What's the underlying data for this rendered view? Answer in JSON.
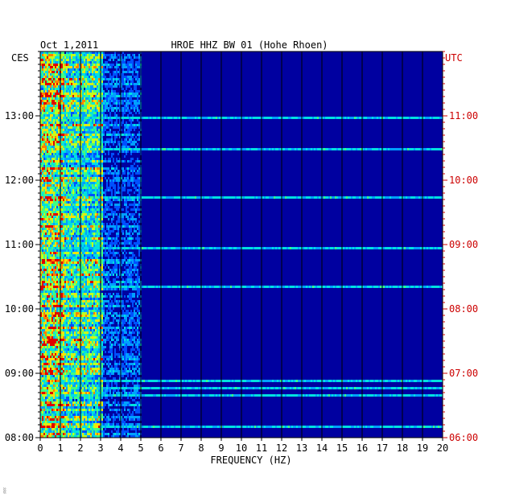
{
  "chart_data": {
    "type": "heatmap",
    "title": "HROE HHZ BW 01 (Hohe Rhoen)",
    "date": "Oct 1,2011",
    "xlabel": "FREQUENCY (HZ)",
    "left_axis_label": "CES",
    "right_axis_label": "UTC",
    "xlim": [
      0,
      20
    ],
    "x_ticks": [
      "0",
      "1",
      "2",
      "3",
      "4",
      "5",
      "6",
      "7",
      "8",
      "9",
      "10",
      "11",
      "12",
      "13",
      "14",
      "15",
      "16",
      "17",
      "18",
      "19",
      "20"
    ],
    "left_ticks": [
      "13:00",
      "12:00",
      "11:00",
      "10:00",
      "09:00",
      "08:00"
    ],
    "right_ticks": [
      "11:00",
      "10:00",
      "09:00",
      "08:00",
      "07:00",
      "06:00"
    ],
    "colors": {
      "background": "#0000a0",
      "text": "#000000",
      "utc_text": "#cc0000",
      "grid": "#000000"
    },
    "footnote": "░"
  }
}
